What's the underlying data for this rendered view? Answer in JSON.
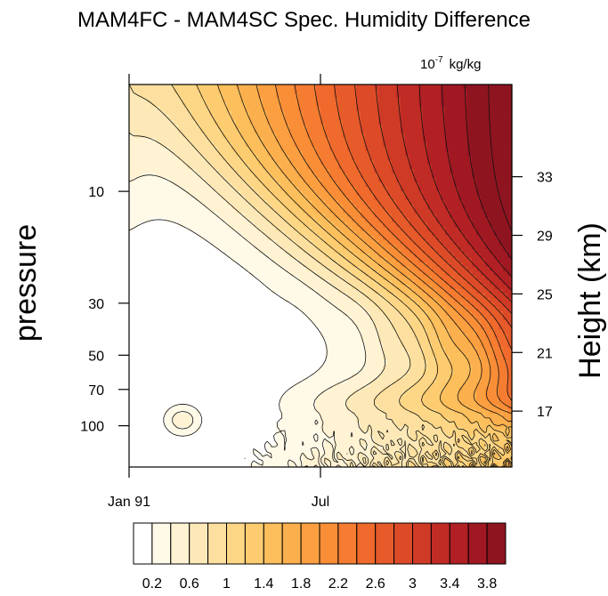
{
  "chart_data": {
    "type": "heatmap",
    "title": "MAM4FC - MAM4SC Spec. Humidity Difference",
    "units": {
      "power": "10",
      "exponent": "-7",
      "unit": "kg/kg"
    },
    "ylabel": "pressure",
    "ylabel_right": "Height (km)",
    "y_scale": "log",
    "y_reversed": true,
    "ylim": [
      150,
      3.5
    ],
    "x_ticks": [
      {
        "label": "Jan 91",
        "month": 0
      },
      {
        "label": "Jul",
        "month": 6
      }
    ],
    "xlim_months": [
      0,
      12
    ],
    "y_ticks_left": [
      {
        "label": "10",
        "value": 10
      },
      {
        "label": "30",
        "value": 30
      },
      {
        "label": "50",
        "value": 50
      },
      {
        "label": "70",
        "value": 70
      },
      {
        "label": "100",
        "value": 100
      }
    ],
    "y_ticks_right": [
      {
        "label": "33",
        "value": 33
      },
      {
        "label": "29",
        "value": 29
      },
      {
        "label": "25",
        "value": 25
      },
      {
        "label": "21",
        "value": 21
      },
      {
        "label": "17",
        "value": 17
      }
    ],
    "contour_levels": [
      0.2,
      0.4,
      0.6,
      0.8,
      1.0,
      1.2,
      1.4,
      1.6,
      1.8,
      2.0,
      2.2,
      2.4,
      2.6,
      2.8,
      3.0,
      3.2,
      3.4,
      3.6,
      3.8,
      4.0
    ],
    "colorbar": {
      "labels": [
        "0.2",
        "0.6",
        "1",
        "1.4",
        "1.8",
        "2.2",
        "2.6",
        "3",
        "3.4",
        "3.8"
      ],
      "colors": [
        "#ffffff",
        "#fff9e8",
        "#fff3d4",
        "#fde9b8",
        "#fde09f",
        "#fdd786",
        "#fdcc70",
        "#fcbf5c",
        "#fcb04d",
        "#fb9f40",
        "#f98e37",
        "#f57c31",
        "#ef6a2c",
        "#e75a2a",
        "#dc4a28",
        "#cf3a26",
        "#c12b25",
        "#b12024",
        "#a01822",
        "#8e1420"
      ]
    }
  }
}
